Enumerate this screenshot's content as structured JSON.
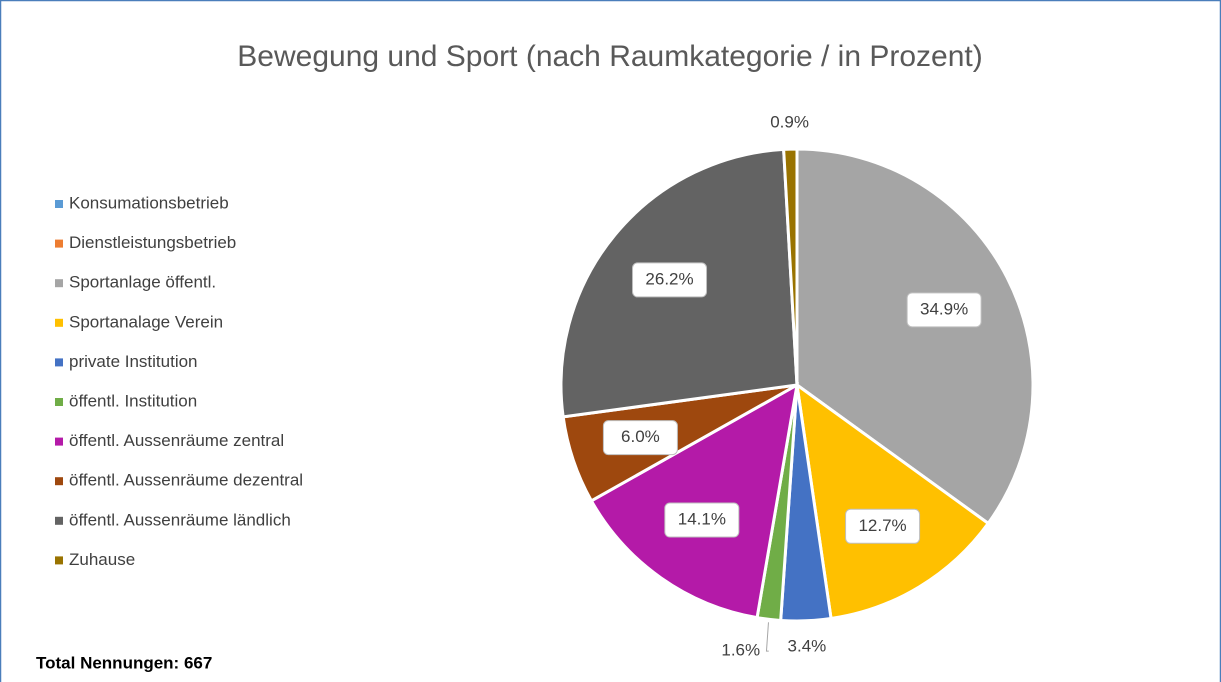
{
  "chart_data": {
    "type": "pie",
    "title": "Bewegung und Sport (nach Raumkategorie / in Prozent)",
    "categories": [
      "Konsumationsbetrieb",
      "Dienstleistungsbetrieb",
      "Sportanlage öffentl.",
      "Sportanalage Verein",
      "private Institution",
      "öffentl. Institution",
      "öffentl. Aussenräume zentral",
      "öffentl. Aussenräume dezentral",
      "öffentl. Aussenräume ländlich",
      "Zuhause"
    ],
    "values": [
      0,
      0,
      34.9,
      12.7,
      3.4,
      1.6,
      14.1,
      6.0,
      26.2,
      0.9
    ],
    "value_labels": [
      null,
      null,
      "34.9%",
      "12.7%",
      "3.4%",
      "1.6%",
      "14.1%",
      "6.0%",
      "26.2%",
      "0.9%"
    ],
    "colors": [
      "#5b9bd5",
      "#ed7d31",
      "#a5a5a5",
      "#ffc000",
      "#4472c4",
      "#70ad47",
      "#b41aa8",
      "#9e480e",
      "#636363",
      "#997300"
    ],
    "legend": "left",
    "annotation": "Total Nennungen: 667"
  }
}
